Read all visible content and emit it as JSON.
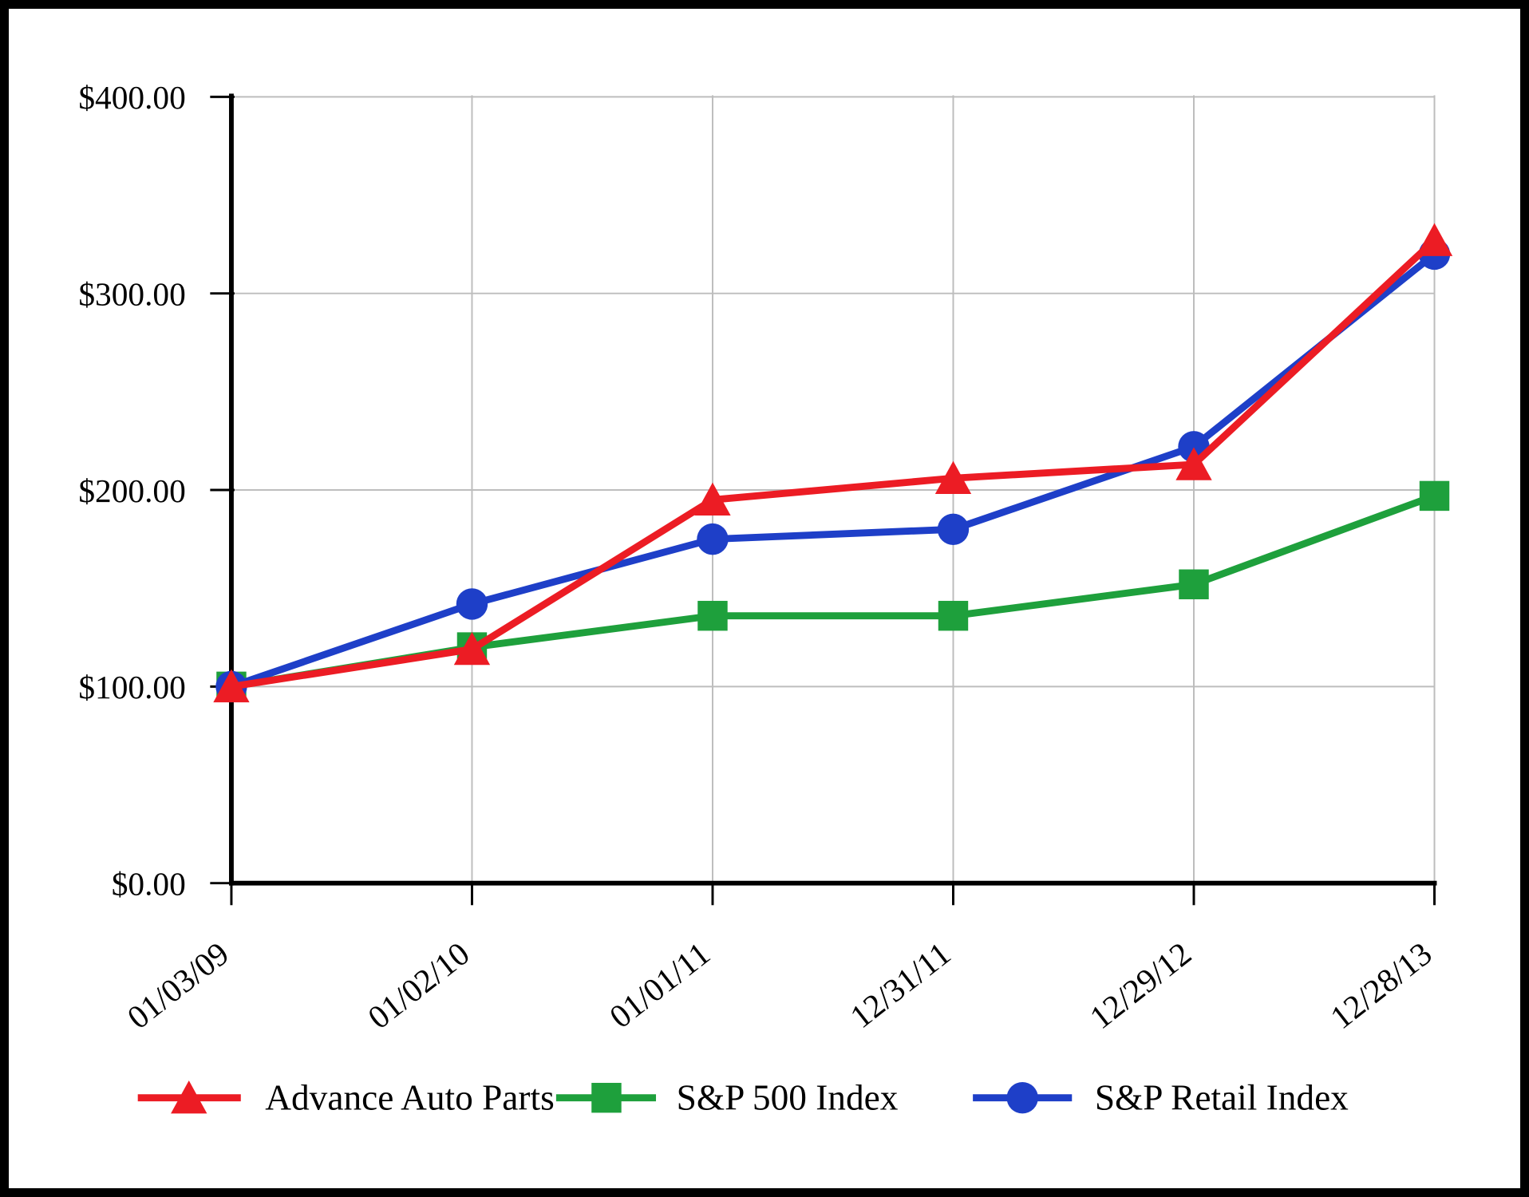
{
  "chart_data": {
    "type": "line",
    "title": "",
    "categories": [
      "01/03/09",
      "01/02/10",
      "01/01/11",
      "12/31/11",
      "12/29/12",
      "12/28/13"
    ],
    "series": [
      {
        "name": "Advance Auto Parts",
        "marker": "triangle",
        "color": "#EC1C24",
        "values": [
          100,
          119,
          195,
          206,
          213,
          327
        ]
      },
      {
        "name": "S&P 500 Index",
        "marker": "square",
        "color": "#1EA03C",
        "values": [
          100,
          120,
          136,
          136,
          152,
          197
        ]
      },
      {
        "name": "S&P Retail Index",
        "marker": "circle",
        "color": "#1E3FC8",
        "values": [
          100,
          142,
          175,
          180,
          222,
          320
        ]
      }
    ],
    "y_ticks": [
      {
        "value": 0,
        "label": "$0.00"
      },
      {
        "value": 100,
        "label": "$100.00"
      },
      {
        "value": 200,
        "label": "$200.00"
      },
      {
        "value": 300,
        "label": "$300.00"
      },
      {
        "value": 400,
        "label": "$400.00"
      }
    ],
    "ylim": [
      0,
      400
    ],
    "grid": true,
    "gridline_color": "#bdbdbd",
    "axis_color": "#000000",
    "legend_position": "bottom",
    "x_label_rotation_deg": -38
  }
}
